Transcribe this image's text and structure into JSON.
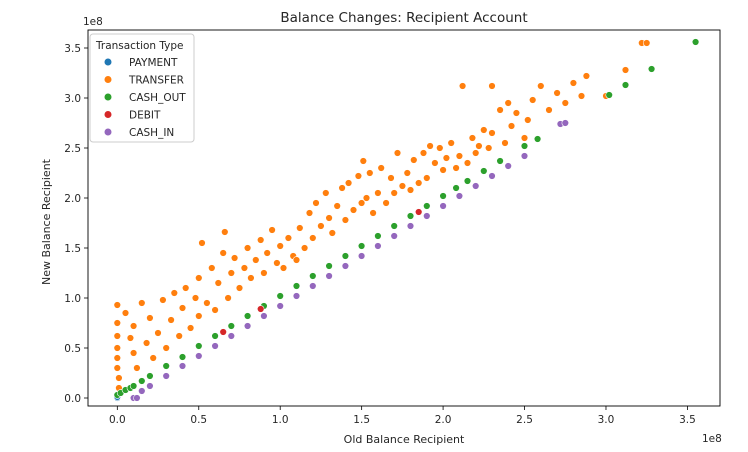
{
  "chart_data": {
    "type": "scatter",
    "title": "Balance Changes: Recipient Account",
    "xlabel": "Old Balance Recipient",
    "ylabel": "New Balance Recipient",
    "x_offset_text": "1e8",
    "y_offset_text": "1e8",
    "xlim": [
      -0.18,
      3.7
    ],
    "ylim": [
      -0.08,
      3.68
    ],
    "x_ticks": [
      0.0,
      0.5,
      1.0,
      1.5,
      2.0,
      2.5,
      3.0,
      3.5
    ],
    "y_ticks": [
      0.0,
      0.5,
      1.0,
      1.5,
      2.0,
      2.5,
      3.0,
      3.5
    ],
    "x_tick_labels": [
      "0.0",
      "0.5",
      "1.0",
      "1.5",
      "2.0",
      "2.5",
      "3.0",
      "3.5"
    ],
    "y_tick_labels": [
      "0.0",
      "0.5",
      "1.0",
      "1.5",
      "2.0",
      "2.5",
      "3.0",
      "3.5"
    ],
    "grid": false,
    "legend": {
      "title": "Transaction Type",
      "placement": "top-left"
    },
    "series": [
      {
        "name": "PAYMENT",
        "color": "#1f77b4",
        "points": [
          [
            0.0,
            0.0
          ],
          [
            0.0,
            0.01
          ]
        ]
      },
      {
        "name": "TRANSFER",
        "color": "#ff7f0e",
        "points": [
          [
            0.0,
            0.93
          ],
          [
            0.0,
            0.75
          ],
          [
            0.0,
            0.62
          ],
          [
            0.0,
            0.5
          ],
          [
            0.0,
            0.4
          ],
          [
            0.0,
            0.3
          ],
          [
            0.01,
            0.2
          ],
          [
            0.01,
            0.1
          ],
          [
            0.05,
            0.85
          ],
          [
            0.08,
            0.6
          ],
          [
            0.1,
            0.72
          ],
          [
            0.1,
            0.45
          ],
          [
            0.12,
            0.3
          ],
          [
            0.15,
            0.95
          ],
          [
            0.18,
            0.55
          ],
          [
            0.2,
            0.8
          ],
          [
            0.22,
            0.4
          ],
          [
            0.25,
            0.65
          ],
          [
            0.28,
            0.98
          ],
          [
            0.3,
            0.5
          ],
          [
            0.33,
            0.78
          ],
          [
            0.35,
            1.05
          ],
          [
            0.38,
            0.62
          ],
          [
            0.4,
            0.9
          ],
          [
            0.42,
            1.1
          ],
          [
            0.45,
            0.7
          ],
          [
            0.48,
            1.0
          ],
          [
            0.5,
            0.82
          ],
          [
            0.5,
            1.2
          ],
          [
            0.52,
            1.55
          ],
          [
            0.55,
            0.95
          ],
          [
            0.58,
            1.3
          ],
          [
            0.6,
            0.88
          ],
          [
            0.62,
            1.15
          ],
          [
            0.65,
            1.45
          ],
          [
            0.66,
            1.66
          ],
          [
            0.68,
            1.0
          ],
          [
            0.7,
            1.25
          ],
          [
            0.72,
            1.4
          ],
          [
            0.75,
            1.1
          ],
          [
            0.78,
            1.3
          ],
          [
            0.8,
            1.5
          ],
          [
            0.82,
            1.2
          ],
          [
            0.85,
            1.38
          ],
          [
            0.88,
            1.58
          ],
          [
            0.9,
            1.25
          ],
          [
            0.92,
            1.45
          ],
          [
            0.95,
            1.68
          ],
          [
            0.98,
            1.35
          ],
          [
            1.0,
            1.52
          ],
          [
            1.02,
            1.3
          ],
          [
            1.05,
            1.6
          ],
          [
            1.08,
            1.42
          ],
          [
            1.1,
            1.38
          ],
          [
            1.12,
            1.7
          ],
          [
            1.15,
            1.5
          ],
          [
            1.18,
            1.85
          ],
          [
            1.2,
            1.6
          ],
          [
            1.22,
            1.95
          ],
          [
            1.25,
            1.72
          ],
          [
            1.28,
            2.05
          ],
          [
            1.3,
            1.8
          ],
          [
            1.32,
            1.65
          ],
          [
            1.35,
            1.92
          ],
          [
            1.38,
            2.1
          ],
          [
            1.4,
            1.78
          ],
          [
            1.42,
            2.15
          ],
          [
            1.45,
            1.88
          ],
          [
            1.48,
            2.22
          ],
          [
            1.5,
            1.95
          ],
          [
            1.51,
            2.37
          ],
          [
            1.53,
            2.0
          ],
          [
            1.55,
            2.25
          ],
          [
            1.57,
            1.85
          ],
          [
            1.6,
            2.05
          ],
          [
            1.62,
            2.3
          ],
          [
            1.65,
            1.95
          ],
          [
            1.68,
            2.2
          ],
          [
            1.7,
            2.05
          ],
          [
            1.72,
            2.45
          ],
          [
            1.75,
            2.12
          ],
          [
            1.78,
            2.25
          ],
          [
            1.8,
            2.08
          ],
          [
            1.82,
            2.38
          ],
          [
            1.85,
            2.15
          ],
          [
            1.88,
            2.45
          ],
          [
            1.9,
            2.2
          ],
          [
            1.92,
            2.52
          ],
          [
            1.95,
            2.35
          ],
          [
            1.98,
            2.5
          ],
          [
            2.0,
            2.28
          ],
          [
            2.02,
            2.4
          ],
          [
            2.05,
            2.55
          ],
          [
            2.08,
            2.3
          ],
          [
            2.1,
            2.42
          ],
          [
            2.12,
            3.12
          ],
          [
            2.15,
            2.35
          ],
          [
            2.18,
            2.6
          ],
          [
            2.2,
            2.45
          ],
          [
            2.22,
            2.52
          ],
          [
            2.25,
            2.68
          ],
          [
            2.28,
            2.5
          ],
          [
            2.3,
            2.65
          ],
          [
            2.3,
            3.12
          ],
          [
            2.35,
            2.88
          ],
          [
            2.38,
            2.55
          ],
          [
            2.4,
            2.95
          ],
          [
            2.42,
            2.72
          ],
          [
            2.45,
            2.85
          ],
          [
            2.5,
            2.6
          ],
          [
            2.52,
            2.78
          ],
          [
            2.55,
            2.98
          ],
          [
            2.6,
            3.12
          ],
          [
            2.65,
            2.88
          ],
          [
            2.7,
            3.05
          ],
          [
            2.75,
            2.95
          ],
          [
            2.8,
            3.15
          ],
          [
            2.85,
            3.02
          ],
          [
            2.88,
            3.22
          ],
          [
            3.0,
            3.02
          ],
          [
            3.12,
            3.28
          ],
          [
            3.22,
            3.55
          ],
          [
            3.25,
            3.55
          ]
        ]
      },
      {
        "name": "CASH_OUT",
        "color": "#2ca02c",
        "points": [
          [
            0.0,
            0.03
          ],
          [
            0.02,
            0.05
          ],
          [
            0.05,
            0.08
          ],
          [
            0.08,
            0.1
          ],
          [
            0.1,
            0.12
          ],
          [
            0.15,
            0.17
          ],
          [
            0.2,
            0.22
          ],
          [
            0.3,
            0.32
          ],
          [
            0.4,
            0.41
          ],
          [
            0.5,
            0.52
          ],
          [
            0.6,
            0.62
          ],
          [
            0.7,
            0.72
          ],
          [
            0.8,
            0.82
          ],
          [
            0.9,
            0.92
          ],
          [
            1.0,
            1.02
          ],
          [
            1.1,
            1.12
          ],
          [
            1.2,
            1.22
          ],
          [
            1.3,
            1.32
          ],
          [
            1.4,
            1.42
          ],
          [
            1.5,
            1.52
          ],
          [
            1.6,
            1.62
          ],
          [
            1.7,
            1.72
          ],
          [
            1.8,
            1.82
          ],
          [
            1.9,
            1.92
          ],
          [
            2.0,
            2.02
          ],
          [
            2.08,
            2.1
          ],
          [
            2.15,
            2.17
          ],
          [
            2.25,
            2.27
          ],
          [
            2.35,
            2.37
          ],
          [
            2.5,
            2.52
          ],
          [
            2.58,
            2.59
          ],
          [
            3.02,
            3.03
          ],
          [
            3.12,
            3.13
          ],
          [
            3.28,
            3.29
          ],
          [
            3.55,
            3.56
          ]
        ]
      },
      {
        "name": "DEBIT",
        "color": "#d62728",
        "points": [
          [
            0.65,
            0.66
          ],
          [
            0.88,
            0.89
          ],
          [
            1.85,
            1.86
          ]
        ]
      },
      {
        "name": "CASH_IN",
        "color": "#9467bd",
        "points": [
          [
            0.1,
            0.0
          ],
          [
            0.12,
            0.0
          ],
          [
            0.15,
            0.07
          ],
          [
            0.2,
            0.12
          ],
          [
            0.3,
            0.22
          ],
          [
            0.4,
            0.32
          ],
          [
            0.5,
            0.42
          ],
          [
            0.6,
            0.52
          ],
          [
            0.7,
            0.62
          ],
          [
            0.8,
            0.72
          ],
          [
            0.9,
            0.82
          ],
          [
            1.0,
            0.92
          ],
          [
            1.1,
            1.02
          ],
          [
            1.2,
            1.12
          ],
          [
            1.3,
            1.22
          ],
          [
            1.4,
            1.32
          ],
          [
            1.5,
            1.42
          ],
          [
            1.6,
            1.52
          ],
          [
            1.7,
            1.62
          ],
          [
            1.8,
            1.72
          ],
          [
            1.9,
            1.82
          ],
          [
            2.0,
            1.92
          ],
          [
            2.1,
            2.02
          ],
          [
            2.2,
            2.12
          ],
          [
            2.3,
            2.22
          ],
          [
            2.4,
            2.32
          ],
          [
            2.5,
            2.42
          ],
          [
            2.72,
            2.74
          ],
          [
            2.75,
            2.75
          ]
        ]
      }
    ]
  }
}
